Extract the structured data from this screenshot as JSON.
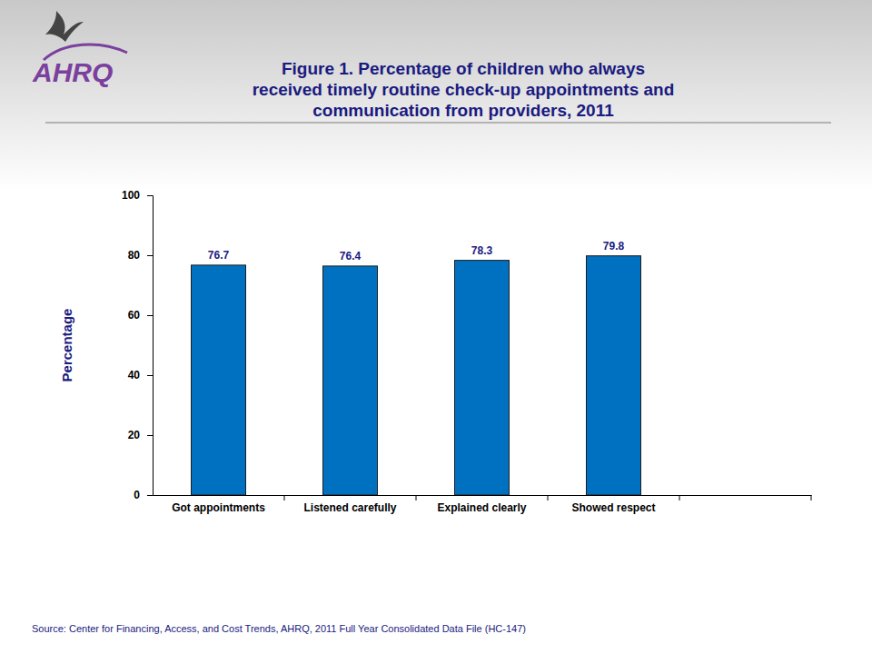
{
  "chart_data": {
    "type": "bar",
    "title": [
      "Figure 1. Percentage of children who always",
      "received timely routine check-up appointments and",
      "communication from providers, 2011"
    ],
    "logo": "AHRQ",
    "ylabel": "Percentage",
    "source": "Source: Center for Financing, Access, and Cost Trends, AHRQ, 2011 Full Year Consolidated Data File (HC-147)",
    "categories": [
      "Got appointments",
      "Listened carefully",
      "Explained clearly",
      "Showed respect",
      null
    ],
    "values": [
      76.7,
      76.4,
      78.3,
      79.8,
      null
    ],
    "color": "#0070c0",
    "ylim": [
      0,
      100
    ],
    "yticks": [
      0,
      20,
      40,
      60,
      80,
      100
    ],
    "grid": false,
    "data_labels": true
  }
}
